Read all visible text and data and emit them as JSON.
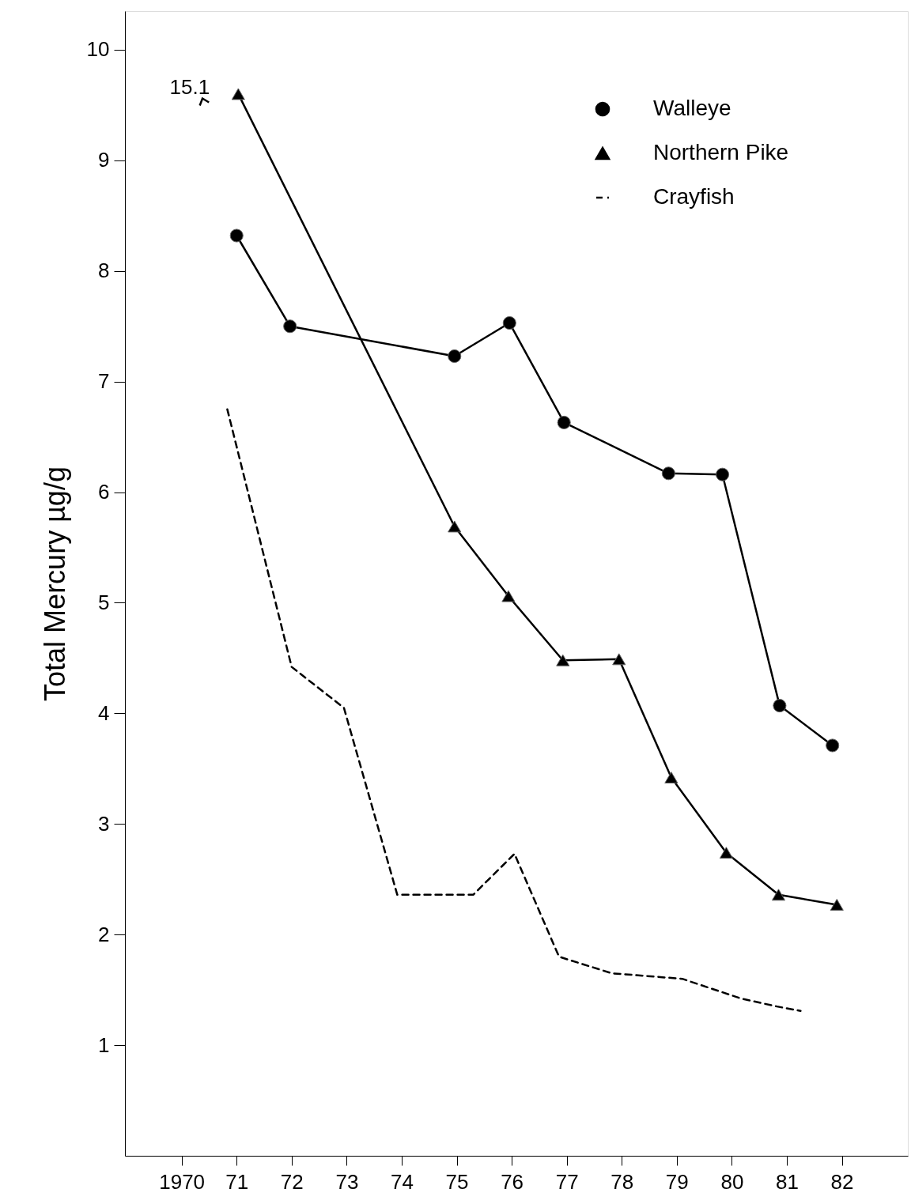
{
  "chart_data": {
    "type": "line",
    "ylabel": "Total Mercury µg/g",
    "xlim": [
      1968.97,
      1983.2
    ],
    "ylim": [
      0,
      10.35
    ],
    "xticks": [
      {
        "value": 1970,
        "label": "1970"
      },
      {
        "value": 1971,
        "label": "71"
      },
      {
        "value": 1972,
        "label": "72"
      },
      {
        "value": 1973,
        "label": "73"
      },
      {
        "value": 1974,
        "label": "74"
      },
      {
        "value": 1975,
        "label": "75"
      },
      {
        "value": 1976,
        "label": "76"
      },
      {
        "value": 1977,
        "label": "77"
      },
      {
        "value": 1978,
        "label": "78"
      },
      {
        "value": 1979,
        "label": "79"
      },
      {
        "value": 1980,
        "label": "80"
      },
      {
        "value": 1981,
        "label": "81"
      },
      {
        "value": 1982,
        "label": "82"
      }
    ],
    "yticks": [
      1,
      2,
      3,
      4,
      5,
      6,
      7,
      8,
      9,
      10
    ],
    "grid": false,
    "legend": "top right",
    "annotations": [
      "15.1"
    ],
    "series": [
      {
        "name": "Walleye",
        "color": "#000000",
        "marker": "circle",
        "line_style": "solid",
        "x": [
          1971.0,
          1971.97,
          1974.96,
          1975.96,
          1976.95,
          1978.85,
          1979.83,
          1980.87,
          1981.83
        ],
        "values": [
          8.32,
          7.5,
          7.23,
          7.53,
          6.63,
          6.17,
          6.16,
          4.07,
          3.71
        ]
      },
      {
        "name": "Northern Pike",
        "color": "#000000",
        "marker": "triangle",
        "line_style": "solid",
        "x": [
          1971.03,
          1974.96,
          1975.94,
          1976.93,
          1977.95,
          1978.9,
          1979.9,
          1980.85,
          1981.91
        ],
        "values": [
          9.6,
          5.69,
          5.06,
          4.48,
          4.49,
          3.42,
          2.74,
          2.36,
          2.27
        ]
      },
      {
        "name": "Crayfish",
        "color": "#000000",
        "marker": "none",
        "line_style": "dashed",
        "x": [
          1970.83,
          1972.0,
          1972.95,
          1973.92,
          1975.3,
          1976.05,
          1976.86,
          1977.82,
          1979.1,
          1980.18,
          1980.82,
          1981.25
        ],
        "values": [
          6.75,
          4.42,
          4.05,
          2.36,
          2.36,
          2.73,
          1.8,
          1.65,
          1.6,
          1.42,
          1.35,
          1.31
        ]
      }
    ]
  }
}
